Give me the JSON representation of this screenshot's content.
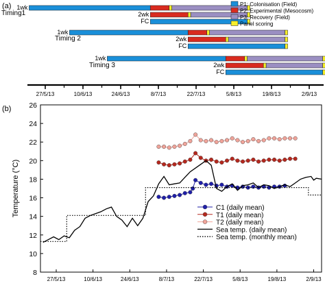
{
  "panel_a": {
    "label": "(a)",
    "legend": [
      {
        "text": "P1: Colonisation (Field)",
        "color": "#1a8fd9"
      },
      {
        "text": "P2: Experimental (Mesocosm)",
        "color": "#d92b1f"
      },
      {
        "text": "P3: Recovery (Field)",
        "color": "#9b8fc2"
      },
      {
        "text": "Panel scoring",
        "color": "#f5ee2a"
      }
    ],
    "timings": [
      {
        "name": "Timing1",
        "rows": [
          {
            "label": "1wk",
            "segments": [
              {
                "phase": "P1",
                "start": "2013-05-21",
                "end": "2013-07-05"
              },
              {
                "phase": "P2",
                "start": "2013-07-05",
                "end": "2013-07-12"
              },
              {
                "phase": "Panel scoring",
                "start": "2013-07-12",
                "end": "2013-07-13"
              },
              {
                "phase": "P3",
                "start": "2013-07-13",
                "end": "2013-08-10"
              },
              {
                "phase": "Panel scoring",
                "start": "2013-08-10",
                "end": "2013-08-11"
              }
            ]
          },
          {
            "label": "2wk",
            "segments": [
              {
                "phase": "P2",
                "start": "2013-07-05",
                "end": "2013-07-19"
              },
              {
                "phase": "Panel scoring",
                "start": "2013-07-19",
                "end": "2013-07-20"
              },
              {
                "phase": "P3",
                "start": "2013-07-20",
                "end": "2013-08-10"
              },
              {
                "phase": "Panel scoring",
                "start": "2013-08-10",
                "end": "2013-08-11"
              }
            ]
          },
          {
            "label": "FC",
            "segments": [
              {
                "phase": "P1",
                "start": "2013-07-05",
                "end": "2013-08-10"
              },
              {
                "phase": "Panel scoring",
                "start": "2013-08-10",
                "end": "2013-08-11"
              }
            ]
          }
        ]
      },
      {
        "name": "Timing  2",
        "rows": [
          {
            "label": "1wk",
            "segments": [
              {
                "phase": "P1",
                "start": "2013-06-05",
                "end": "2013-07-19"
              },
              {
                "phase": "P2",
                "start": "2013-07-19",
                "end": "2013-07-26"
              },
              {
                "phase": "Panel scoring",
                "start": "2013-07-26",
                "end": "2013-07-27"
              },
              {
                "phase": "P3",
                "start": "2013-07-27",
                "end": "2013-08-24"
              },
              {
                "phase": "Panel scoring",
                "start": "2013-08-24",
                "end": "2013-08-25"
              }
            ]
          },
          {
            "label": "2wk",
            "segments": [
              {
                "phase": "P2",
                "start": "2013-07-19",
                "end": "2013-08-02"
              },
              {
                "phase": "Panel scoring",
                "start": "2013-08-02",
                "end": "2013-08-03"
              },
              {
                "phase": "P3",
                "start": "2013-08-03",
                "end": "2013-08-24"
              },
              {
                "phase": "Panel scoring",
                "start": "2013-08-24",
                "end": "2013-08-25"
              }
            ]
          },
          {
            "label": "FC",
            "segments": [
              {
                "phase": "P1",
                "start": "2013-07-19",
                "end": "2013-08-24"
              },
              {
                "phase": "Panel scoring",
                "start": "2013-08-24",
                "end": "2013-08-25"
              }
            ]
          }
        ]
      },
      {
        "name": "Timing 3",
        "rows": [
          {
            "label": "1wk",
            "segments": [
              {
                "phase": "P1",
                "start": "2013-06-19",
                "end": "2013-08-02"
              },
              {
                "phase": "P2",
                "start": "2013-08-02",
                "end": "2013-08-09"
              },
              {
                "phase": "Panel scoring",
                "start": "2013-08-09",
                "end": "2013-08-10"
              },
              {
                "phase": "P3",
                "start": "2013-08-10",
                "end": "2013-09-07"
              },
              {
                "phase": "Panel scoring",
                "start": "2013-09-07",
                "end": "2013-09-08"
              }
            ]
          },
          {
            "label": "2wk",
            "segments": [
              {
                "phase": "P2",
                "start": "2013-08-02",
                "end": "2013-08-16"
              },
              {
                "phase": "Panel scoring",
                "start": "2013-08-16",
                "end": "2013-08-17"
              },
              {
                "phase": "P3",
                "start": "2013-08-17",
                "end": "2013-09-07"
              },
              {
                "phase": "Panel scoring",
                "start": "2013-09-07",
                "end": "2013-09-08"
              }
            ]
          },
          {
            "label": "FC",
            "segments": [
              {
                "phase": "P1",
                "start": "2013-08-02",
                "end": "2013-09-07"
              },
              {
                "phase": "Panel scoring",
                "start": "2013-09-07",
                "end": "2013-09-08"
              }
            ]
          }
        ]
      }
    ],
    "xticks": [
      "27/5/13",
      "10/6/13",
      "24/6/13",
      "8/7/13",
      "22/7/13",
      "5/8/13",
      "19/8/13",
      "2/9/13"
    ]
  },
  "chart_data": {
    "type": "line",
    "panel_label": "(b)",
    "xlabel": "",
    "ylabel": "Temperature (°C)",
    "ylim": [
      8,
      26
    ],
    "yticks": [
      8,
      10,
      12,
      14,
      16,
      18,
      20,
      22,
      24,
      26
    ],
    "xlim": [
      "2013-05-21",
      "2013-09-05"
    ],
    "xticks": [
      {
        "date": "2013-05-27",
        "label": "27/5/13"
      },
      {
        "date": "2013-06-10",
        "label": "10/6/13"
      },
      {
        "date": "2013-06-24",
        "label": "24/6/13"
      },
      {
        "date": "2013-07-08",
        "label": "8/7/13"
      },
      {
        "date": "2013-07-22",
        "label": "22/7/13"
      },
      {
        "date": "2013-08-05",
        "label": "5/8/13"
      },
      {
        "date": "2013-08-19",
        "label": "19/8/13"
      },
      {
        "date": "2013-09-02",
        "label": "2/9/13"
      }
    ],
    "legend_position": "bottom-right",
    "series": [
      {
        "name": "C1 (daily mean)",
        "style": "marker",
        "color": "#1f1fa8",
        "points": [
          [
            "2013-07-05",
            16.1
          ],
          [
            "2013-07-07",
            16.0
          ],
          [
            "2013-07-09",
            16.1
          ],
          [
            "2013-07-11",
            16.2
          ],
          [
            "2013-07-13",
            16.3
          ],
          [
            "2013-07-15",
            16.5
          ],
          [
            "2013-07-17",
            16.6
          ],
          [
            "2013-07-18",
            17.0
          ],
          [
            "2013-07-19",
            17.9
          ],
          [
            "2013-07-21",
            17.6
          ],
          [
            "2013-07-23",
            17.4
          ],
          [
            "2013-07-25",
            17.5
          ],
          [
            "2013-07-27",
            17.3
          ],
          [
            "2013-07-29",
            17.4
          ],
          [
            "2013-07-31",
            17.2
          ],
          [
            "2013-08-02",
            17.3
          ],
          [
            "2013-08-04",
            17.1
          ],
          [
            "2013-08-06",
            17.2
          ],
          [
            "2013-08-08",
            17.1
          ],
          [
            "2013-08-10",
            17.2
          ],
          [
            "2013-08-12",
            17.1
          ],
          [
            "2013-08-14",
            17.2
          ],
          [
            "2013-08-16",
            17.1
          ],
          [
            "2013-08-18",
            17.2
          ],
          [
            "2013-08-20",
            17.2
          ],
          [
            "2013-08-22",
            17.3
          ]
        ]
      },
      {
        "name": "T1 (daily mean)",
        "style": "marker",
        "color": "#b5281e",
        "points": [
          [
            "2013-07-05",
            19.8
          ],
          [
            "2013-07-07",
            19.6
          ],
          [
            "2013-07-09",
            19.5
          ],
          [
            "2013-07-11",
            19.6
          ],
          [
            "2013-07-13",
            19.7
          ],
          [
            "2013-07-15",
            19.9
          ],
          [
            "2013-07-17",
            20.1
          ],
          [
            "2013-07-19",
            20.8
          ],
          [
            "2013-07-21",
            20.3
          ],
          [
            "2013-07-23",
            20.0
          ],
          [
            "2013-07-25",
            20.1
          ],
          [
            "2013-07-27",
            19.9
          ],
          [
            "2013-07-29",
            19.8
          ],
          [
            "2013-07-31",
            20.0
          ],
          [
            "2013-08-02",
            20.2
          ],
          [
            "2013-08-04",
            20.0
          ],
          [
            "2013-08-06",
            19.9
          ],
          [
            "2013-08-08",
            20.0
          ],
          [
            "2013-08-10",
            20.1
          ],
          [
            "2013-08-12",
            19.9
          ],
          [
            "2013-08-14",
            20.0
          ],
          [
            "2013-08-16",
            20.1
          ],
          [
            "2013-08-18",
            20.1
          ],
          [
            "2013-08-20",
            20.0
          ],
          [
            "2013-08-22",
            20.1
          ],
          [
            "2013-08-24",
            20.2
          ],
          [
            "2013-08-26",
            20.2
          ]
        ]
      },
      {
        "name": "T2 (daily mean)",
        "style": "marker",
        "color": "#f0a49a",
        "points": [
          [
            "2013-07-05",
            21.5
          ],
          [
            "2013-07-07",
            21.5
          ],
          [
            "2013-07-09",
            21.4
          ],
          [
            "2013-07-11",
            21.5
          ],
          [
            "2013-07-13",
            21.6
          ],
          [
            "2013-07-15",
            21.8
          ],
          [
            "2013-07-17",
            22.1
          ],
          [
            "2013-07-19",
            22.8
          ],
          [
            "2013-07-21",
            22.2
          ],
          [
            "2013-07-23",
            22.1
          ],
          [
            "2013-07-25",
            22.2
          ],
          [
            "2013-07-27",
            22.0
          ],
          [
            "2013-07-29",
            22.1
          ],
          [
            "2013-07-31",
            22.2
          ],
          [
            "2013-08-02",
            22.4
          ],
          [
            "2013-08-04",
            22.2
          ],
          [
            "2013-08-06",
            22.0
          ],
          [
            "2013-08-08",
            22.1
          ],
          [
            "2013-08-10",
            22.3
          ],
          [
            "2013-08-12",
            22.1
          ],
          [
            "2013-08-14",
            22.2
          ],
          [
            "2013-08-16",
            22.4
          ],
          [
            "2013-08-18",
            22.4
          ],
          [
            "2013-08-20",
            22.3
          ],
          [
            "2013-08-22",
            22.4
          ],
          [
            "2013-08-24",
            22.4
          ],
          [
            "2013-08-26",
            22.4
          ]
        ]
      },
      {
        "name": "Sea temp. (daily mean)",
        "style": "solid",
        "color": "#000000",
        "points": [
          [
            "2013-05-22",
            11.2
          ],
          [
            "2013-05-24",
            11.5
          ],
          [
            "2013-05-26",
            11.8
          ],
          [
            "2013-05-28",
            11.5
          ],
          [
            "2013-05-30",
            11.9
          ],
          [
            "2013-06-01",
            11.7
          ],
          [
            "2013-06-03",
            12.5
          ],
          [
            "2013-06-05",
            12.9
          ],
          [
            "2013-06-07",
            13.8
          ],
          [
            "2013-06-09",
            14.1
          ],
          [
            "2013-06-11",
            14.3
          ],
          [
            "2013-06-13",
            14.5
          ],
          [
            "2013-06-15",
            14.8
          ],
          [
            "2013-06-17",
            15.0
          ],
          [
            "2013-06-19",
            14.0
          ],
          [
            "2013-06-21",
            13.6
          ],
          [
            "2013-06-23",
            12.9
          ],
          [
            "2013-06-25",
            13.8
          ],
          [
            "2013-06-27",
            13.0
          ],
          [
            "2013-06-29",
            13.8
          ],
          [
            "2013-07-01",
            15.6
          ],
          [
            "2013-07-03",
            16.2
          ],
          [
            "2013-07-05",
            17.5
          ],
          [
            "2013-07-07",
            18.3
          ],
          [
            "2013-07-09",
            17.4
          ],
          [
            "2013-07-11",
            17.5
          ],
          [
            "2013-07-13",
            17.6
          ],
          [
            "2013-07-15",
            18.2
          ],
          [
            "2013-07-17",
            18.8
          ],
          [
            "2013-07-19",
            19.2
          ],
          [
            "2013-07-21",
            19.6
          ],
          [
            "2013-07-23",
            20.0
          ],
          [
            "2013-07-25",
            19.5
          ],
          [
            "2013-07-27",
            17.0
          ],
          [
            "2013-07-29",
            16.7
          ],
          [
            "2013-07-31",
            17.2
          ],
          [
            "2013-08-02",
            17.5
          ],
          [
            "2013-08-04",
            16.8
          ],
          [
            "2013-08-06",
            17.3
          ],
          [
            "2013-08-08",
            17.4
          ],
          [
            "2013-08-10",
            17.6
          ],
          [
            "2013-08-12",
            17.1
          ],
          [
            "2013-08-14",
            17.4
          ],
          [
            "2013-08-16",
            17.3
          ],
          [
            "2013-08-18",
            17.0
          ],
          [
            "2013-08-20",
            17.2
          ],
          [
            "2013-08-22",
            17.4
          ],
          [
            "2013-08-24",
            17.2
          ],
          [
            "2013-08-26",
            17.6
          ],
          [
            "2013-08-28",
            18.0
          ],
          [
            "2013-08-30",
            18.2
          ],
          [
            "2013-09-01",
            18.3
          ],
          [
            "2013-09-02",
            17.9
          ],
          [
            "2013-09-03",
            18.1
          ],
          [
            "2013-09-05",
            18.0
          ]
        ]
      },
      {
        "name": "Sea temp. (monthly mean)",
        "style": "dotted",
        "color": "#000000",
        "points": [
          [
            "2013-05-21",
            11.3
          ],
          [
            "2013-05-31",
            11.3
          ],
          [
            "2013-05-31",
            14.1
          ],
          [
            "2013-06-30",
            14.1
          ],
          [
            "2013-06-30",
            17.1
          ],
          [
            "2013-08-31",
            17.1
          ],
          [
            "2013-08-31",
            16.3
          ],
          [
            "2013-09-05",
            16.3
          ]
        ]
      }
    ]
  }
}
